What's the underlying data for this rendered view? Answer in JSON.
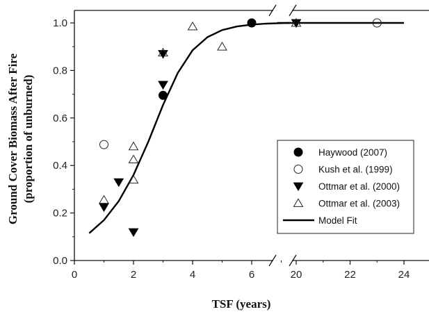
{
  "chart_data": {
    "type": "scatter",
    "xlabel": "TSF (years)",
    "ylabel_line1": "Ground Cover Biomass After Fire",
    "ylabel_line2": "(proportion of unburned)",
    "x_break": {
      "from": 7.3,
      "to": 19.3
    },
    "xlim": [
      0,
      25
    ],
    "ylim": [
      0,
      1.05
    ],
    "x_ticks": [
      0,
      2,
      4,
      6,
      20,
      22,
      24
    ],
    "y_ticks": [
      "0.0",
      "0.2",
      "0.4",
      "0.6",
      "0.8",
      "1.0"
    ],
    "series": [
      {
        "name": "Haywood (2007)",
        "marker": "circle-filled",
        "points": [
          [
            3,
            0.695
          ],
          [
            6,
            1.0
          ]
        ]
      },
      {
        "name": "Kush et al. (1999)",
        "marker": "circle-open",
        "points": [
          [
            1,
            0.488
          ],
          [
            23,
            1.0
          ]
        ]
      },
      {
        "name": "Ottmar et al. (2000)",
        "marker": "triangle-down-filled",
        "points": [
          [
            1,
            0.225
          ],
          [
            1.5,
            0.33
          ],
          [
            2,
            0.12
          ],
          [
            3,
            0.74
          ],
          [
            3,
            0.87
          ],
          [
            20,
            1.0
          ]
        ]
      },
      {
        "name": "Ottmar et al. (2003)",
        "marker": "triangle-up-open",
        "points": [
          [
            1,
            0.255
          ],
          [
            2,
            0.34
          ],
          [
            2,
            0.425
          ],
          [
            2,
            0.48
          ],
          [
            3,
            0.875
          ],
          [
            4,
            0.985
          ],
          [
            5,
            0.9
          ],
          [
            20,
            1.0
          ]
        ]
      },
      {
        "name": "Model Fit",
        "marker": "line",
        "points": [
          [
            0.5,
            0.115
          ],
          [
            1.0,
            0.17
          ],
          [
            1.5,
            0.25
          ],
          [
            2.0,
            0.36
          ],
          [
            2.5,
            0.5
          ],
          [
            3.0,
            0.655
          ],
          [
            3.5,
            0.79
          ],
          [
            4.0,
            0.885
          ],
          [
            4.5,
            0.94
          ],
          [
            5.0,
            0.97
          ],
          [
            5.5,
            0.985
          ],
          [
            6.0,
            0.993
          ],
          [
            6.5,
            0.997
          ],
          [
            7.0,
            0.999
          ],
          [
            7.3,
            1.0
          ],
          [
            19.3,
            1.0
          ],
          [
            20,
            1.0
          ],
          [
            22,
            1.0
          ],
          [
            24,
            1.0
          ]
        ]
      }
    ],
    "legend": {
      "placement": "lower-right",
      "entries": [
        "Haywood (2007)",
        "Kush et al. (1999)",
        "Ottmar et al. (2000)",
        "Ottmar et al. (2003)",
        "Model Fit"
      ]
    }
  }
}
